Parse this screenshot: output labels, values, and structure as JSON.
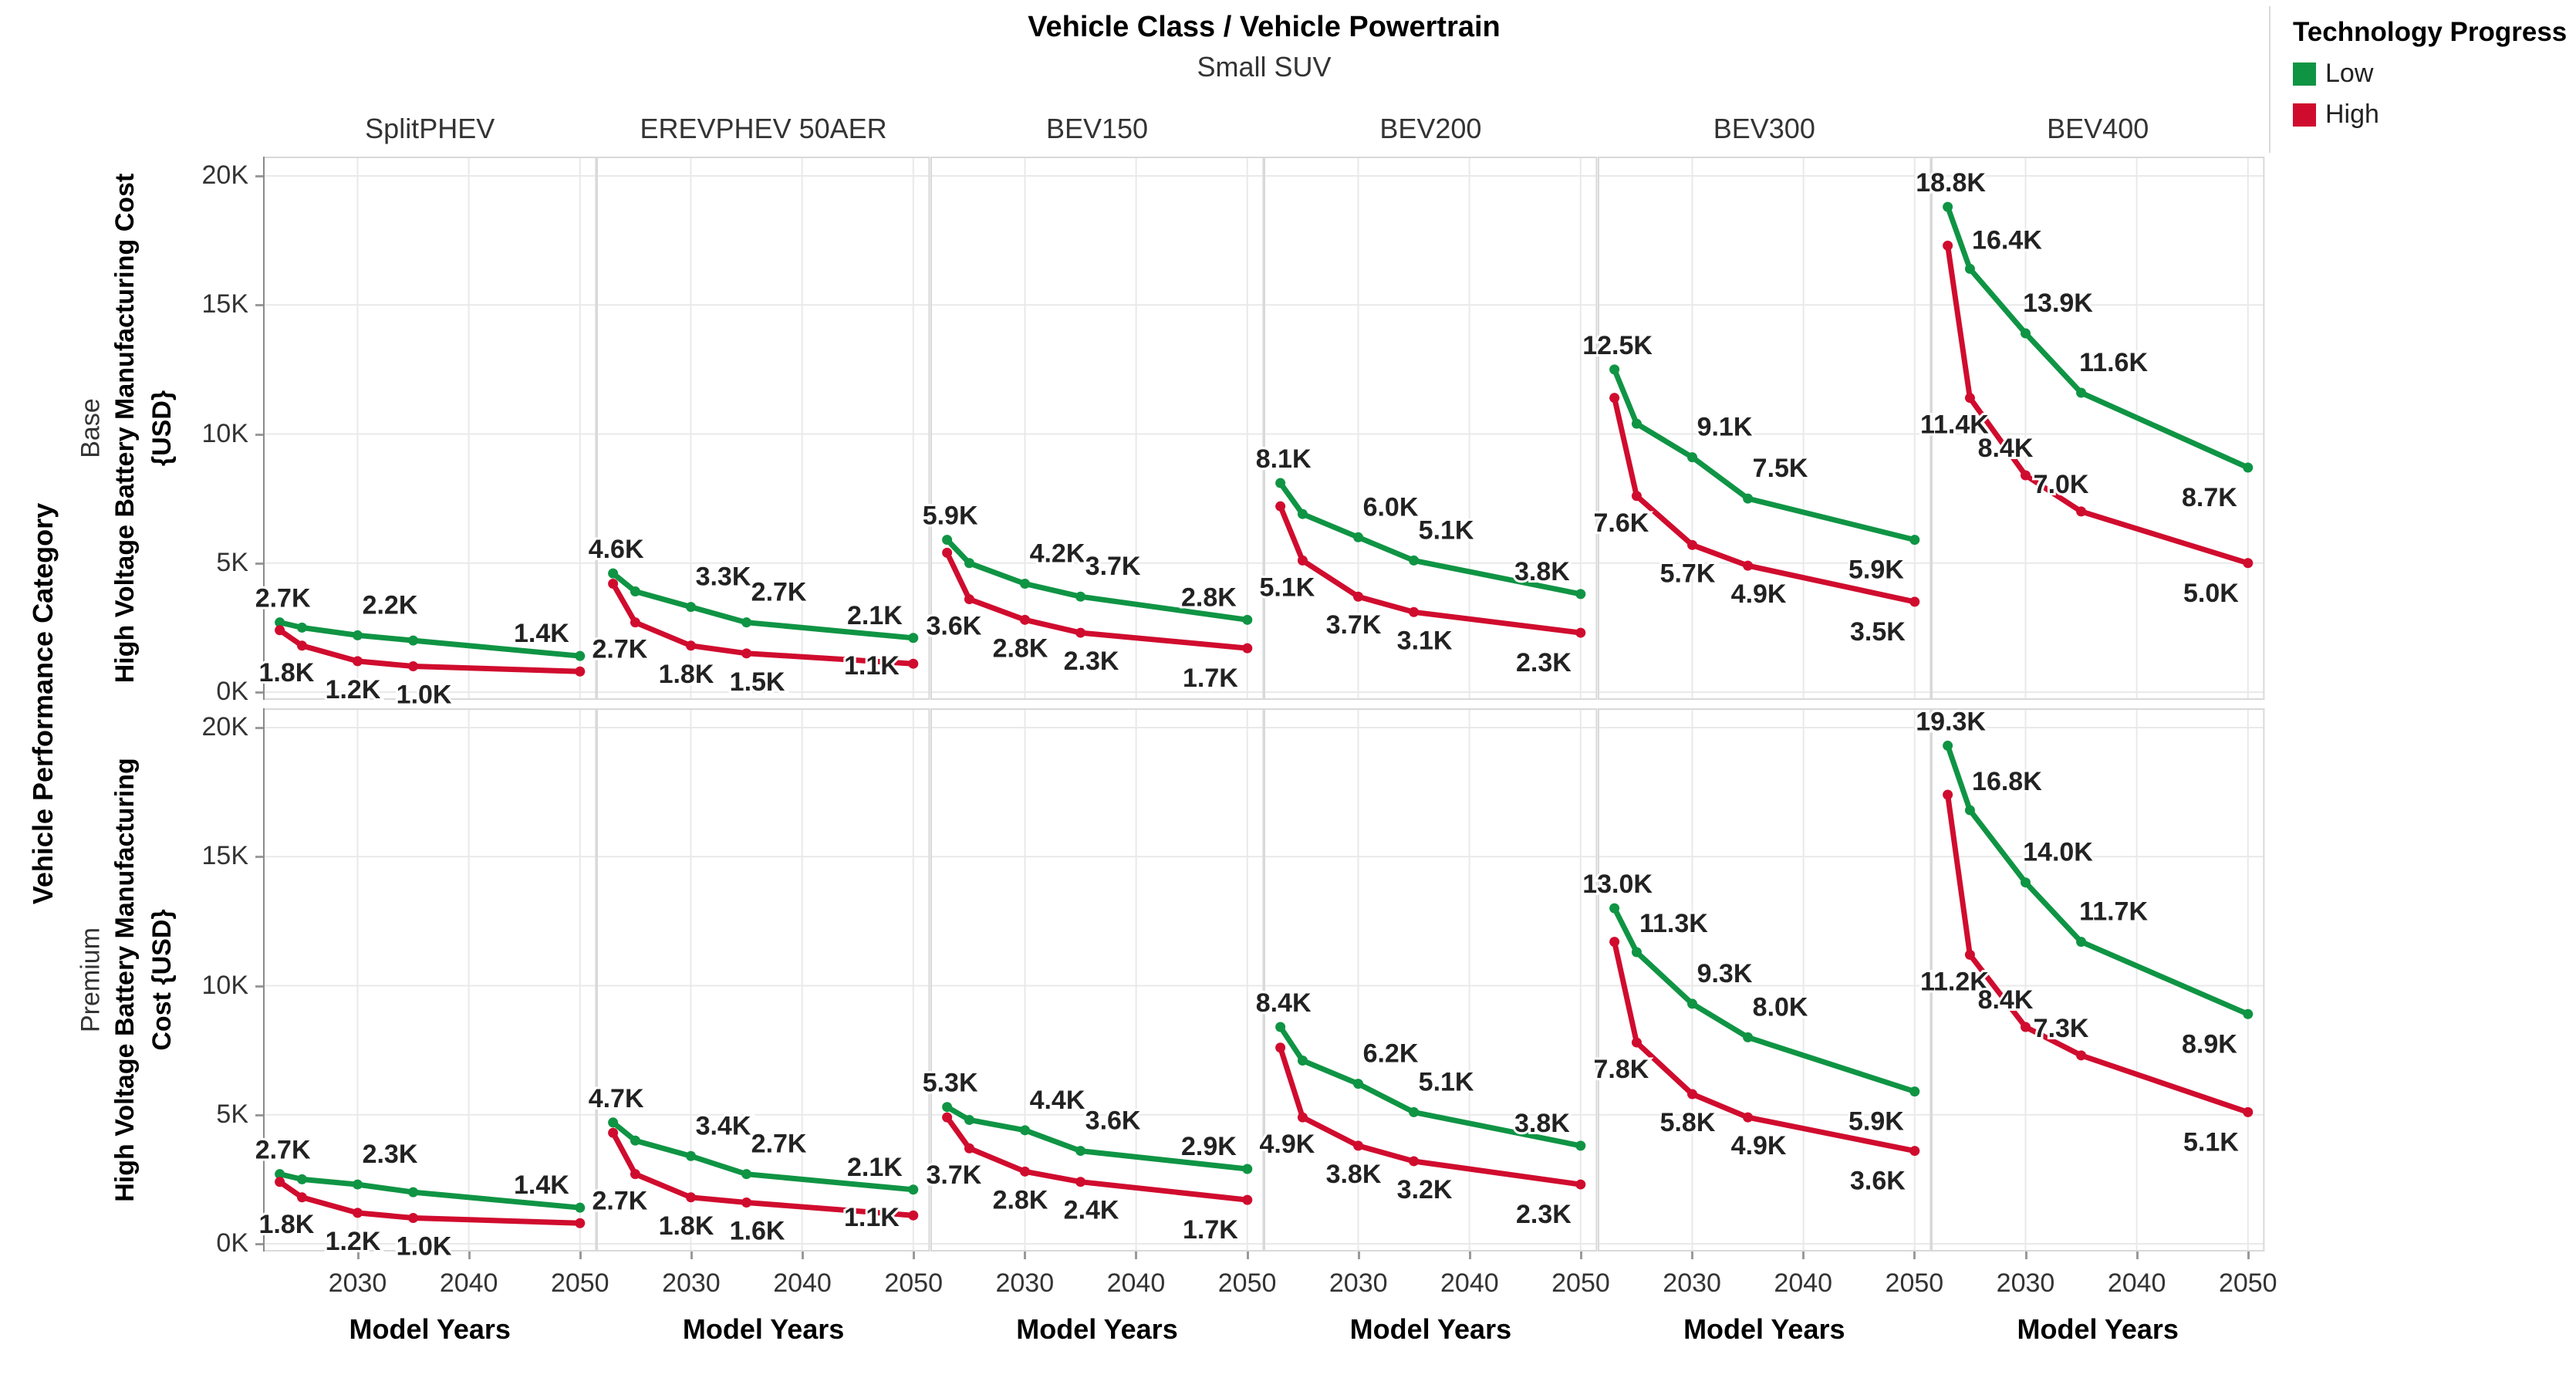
{
  "header": {
    "title": "Vehicle Class  /  Vehicle Powertrain",
    "subtitle": "Small SUV"
  },
  "legend": {
    "title": "Technology Progress",
    "items": [
      {
        "label": "Low",
        "color": "#0f9444"
      },
      {
        "label": "High",
        "color": "#d00c2e"
      }
    ]
  },
  "left_axis": {
    "category_label": "Vehicle Performance Category",
    "row_labels": [
      "Base",
      "Premium"
    ],
    "y_axis_titles": [
      [
        "High Voltage Battery Manufacturing Cost",
        "{USD}"
      ],
      [
        "High Voltage Battery Manufacturing",
        "Cost {USD}"
      ]
    ]
  },
  "chart_data": {
    "type": "line",
    "title": "Vehicle Class / Vehicle Powertrain - Small SUV",
    "xlabel": "Model Years",
    "ylabel": "High Voltage Battery Manufacturing Cost {USD}",
    "facet_columns": [
      "SplitPHEV",
      "EREVPHEV 50AER",
      "BEV150",
      "BEV200",
      "BEV300",
      "BEV400"
    ],
    "facet_rows": [
      "Base",
      "Premium"
    ],
    "x": [
      2023,
      2025,
      2030,
      2035,
      2050
    ],
    "x_ticks": [
      "2030",
      "2040",
      "2050"
    ],
    "x_tick_years": [
      2030,
      2040,
      2050
    ],
    "x_range": [
      2021.5,
      2051.5
    ],
    "y_ticks": [
      "0K",
      "5K",
      "10K",
      "15K",
      "20K"
    ],
    "y_tick_values_k": [
      0,
      5,
      10,
      15,
      20
    ],
    "ylim_k": [
      0,
      20
    ],
    "grid": true,
    "legend_position": "top-right",
    "series_names": [
      "Low",
      "High"
    ],
    "colors": {
      "Low": "#0f9444",
      "High": "#d00c2e"
    },
    "panels": [
      {
        "row": "Base",
        "column": "SplitPHEV",
        "low": {
          "values_k": [
            2.7,
            2.5,
            2.2,
            2.0,
            1.4
          ],
          "labels": [
            "2.7K",
            null,
            "2.2K",
            null,
            "1.4K"
          ]
        },
        "high": {
          "values_k": [
            2.4,
            1.8,
            1.2,
            1.0,
            0.8
          ],
          "labels": [
            null,
            "1.8K",
            "1.2K",
            "1.0K",
            null
          ]
        }
      },
      {
        "row": "Base",
        "column": "EREVPHEV 50AER",
        "low": {
          "values_k": [
            4.6,
            3.9,
            3.3,
            2.7,
            2.1
          ],
          "labels": [
            "4.6K",
            null,
            "3.3K",
            "2.7K",
            "2.1K"
          ]
        },
        "high": {
          "values_k": [
            4.2,
            2.7,
            1.8,
            1.5,
            1.1
          ],
          "labels": [
            null,
            "2.7K",
            "1.8K",
            "1.5K",
            "1.1K"
          ]
        }
      },
      {
        "row": "Base",
        "column": "BEV150",
        "low": {
          "values_k": [
            5.9,
            5.0,
            4.2,
            3.7,
            2.8
          ],
          "labels": [
            "5.9K",
            null,
            "4.2K",
            "3.7K",
            "2.8K"
          ]
        },
        "high": {
          "values_k": [
            5.4,
            3.6,
            2.8,
            2.3,
            1.7
          ],
          "labels": [
            null,
            "3.6K",
            "2.8K",
            "2.3K",
            "1.7K"
          ]
        }
      },
      {
        "row": "Base",
        "column": "BEV200",
        "low": {
          "values_k": [
            8.1,
            6.9,
            6.0,
            5.1,
            3.8
          ],
          "labels": [
            "8.1K",
            null,
            "6.0K",
            "5.1K",
            "3.8K"
          ]
        },
        "high": {
          "values_k": [
            7.2,
            5.1,
            3.7,
            3.1,
            2.3
          ],
          "labels": [
            null,
            "5.1K",
            "3.7K",
            "3.1K",
            "2.3K"
          ]
        }
      },
      {
        "row": "Base",
        "column": "BEV300",
        "low": {
          "values_k": [
            12.5,
            10.4,
            9.1,
            7.5,
            5.9
          ],
          "labels": [
            "12.5K",
            null,
            "9.1K",
            "7.5K",
            "5.9K"
          ]
        },
        "high": {
          "values_k": [
            11.4,
            7.6,
            5.7,
            4.9,
            3.5
          ],
          "labels": [
            null,
            "7.6K",
            "5.7K",
            "4.9K",
            "3.5K"
          ]
        }
      },
      {
        "row": "Base",
        "column": "BEV400",
        "low": {
          "values_k": [
            18.8,
            16.4,
            13.9,
            11.6,
            8.7
          ],
          "labels": [
            "18.8K",
            "16.4K",
            "13.9K",
            "11.6K",
            "8.7K"
          ]
        },
        "high": {
          "values_k": [
            17.3,
            11.4,
            8.4,
            7.0,
            5.0
          ],
          "labels": [
            null,
            "11.4K",
            "8.4K",
            "7.0K",
            "5.0K"
          ]
        }
      },
      {
        "row": "Premium",
        "column": "SplitPHEV",
        "low": {
          "values_k": [
            2.7,
            2.5,
            2.3,
            2.0,
            1.4
          ],
          "labels": [
            "2.7K",
            null,
            "2.3K",
            null,
            "1.4K"
          ]
        },
        "high": {
          "values_k": [
            2.4,
            1.8,
            1.2,
            1.0,
            0.8
          ],
          "labels": [
            null,
            "1.8K",
            "1.2K",
            "1.0K",
            null
          ]
        }
      },
      {
        "row": "Premium",
        "column": "EREVPHEV 50AER",
        "low": {
          "values_k": [
            4.7,
            4.0,
            3.4,
            2.7,
            2.1
          ],
          "labels": [
            "4.7K",
            null,
            "3.4K",
            "2.7K",
            "2.1K"
          ]
        },
        "high": {
          "values_k": [
            4.3,
            2.7,
            1.8,
            1.6,
            1.1
          ],
          "labels": [
            null,
            "2.7K",
            "1.8K",
            "1.6K",
            "1.1K"
          ]
        }
      },
      {
        "row": "Premium",
        "column": "BEV150",
        "low": {
          "values_k": [
            5.3,
            4.8,
            4.4,
            3.6,
            2.9
          ],
          "labels": [
            "5.3K",
            null,
            "4.4K",
            "3.6K",
            "2.9K"
          ]
        },
        "high": {
          "values_k": [
            4.9,
            3.7,
            2.8,
            2.4,
            1.7
          ],
          "labels": [
            null,
            "3.7K",
            "2.8K",
            "2.4K",
            "1.7K"
          ]
        }
      },
      {
        "row": "Premium",
        "column": "BEV200",
        "low": {
          "values_k": [
            8.4,
            7.1,
            6.2,
            5.1,
            3.8
          ],
          "labels": [
            "8.4K",
            null,
            "6.2K",
            "5.1K",
            "3.8K"
          ]
        },
        "high": {
          "values_k": [
            7.6,
            4.9,
            3.8,
            3.2,
            2.3
          ],
          "labels": [
            null,
            "4.9K",
            "3.8K",
            "3.2K",
            "2.3K"
          ]
        }
      },
      {
        "row": "Premium",
        "column": "BEV300",
        "low": {
          "values_k": [
            13.0,
            11.3,
            9.3,
            8.0,
            5.9
          ],
          "labels": [
            "13.0K",
            "11.3K",
            "9.3K",
            "8.0K",
            "5.9K"
          ]
        },
        "high": {
          "values_k": [
            11.7,
            7.8,
            5.8,
            4.9,
            3.6
          ],
          "labels": [
            null,
            "7.8K",
            "5.8K",
            "4.9K",
            "3.6K"
          ]
        }
      },
      {
        "row": "Premium",
        "column": "BEV400",
        "low": {
          "values_k": [
            19.3,
            16.8,
            14.0,
            11.7,
            8.9
          ],
          "labels": [
            "19.3K",
            "16.8K",
            "14.0K",
            "11.7K",
            "8.9K"
          ]
        },
        "high": {
          "values_k": [
            17.4,
            11.2,
            8.4,
            7.3,
            5.1
          ],
          "labels": [
            null,
            "11.2K",
            "8.4K",
            "7.3K",
            "5.1K"
          ]
        }
      }
    ]
  }
}
